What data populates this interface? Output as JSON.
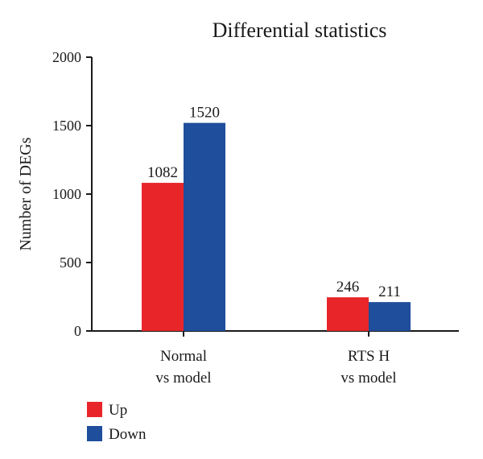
{
  "chart_data": {
    "type": "bar",
    "title": "Differential statistics",
    "xlabel": "",
    "ylabel": "Number of DEGs",
    "ylim": [
      0,
      2000
    ],
    "yticks": [
      0,
      500,
      1000,
      1500,
      2000
    ],
    "categories": [
      {
        "line1": "Normal",
        "line2": "vs model"
      },
      {
        "line1": "RTS H",
        "line2": "vs model"
      }
    ],
    "series": [
      {
        "name": "Up",
        "color": "#e8262a",
        "values": [
          1082,
          246
        ]
      },
      {
        "name": "Down",
        "color": "#1f4e9c",
        "values": [
          1520,
          211
        ]
      }
    ],
    "data_labels": true,
    "grid": false,
    "legend": "bottom-left"
  }
}
